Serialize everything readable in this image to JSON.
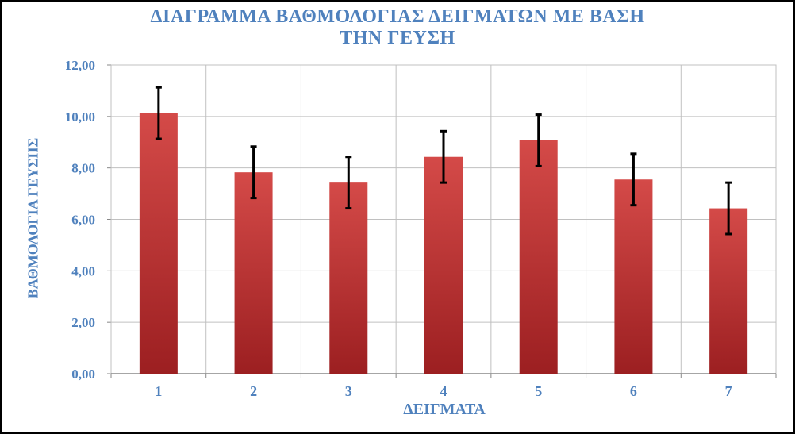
{
  "chart_data": {
    "type": "bar",
    "title_lines": [
      "ΔΙΑΓΡΑΜΜΑ ΒΑΘΜΟΛΟΓΙΑΣ ΔΕΙΓΜΑΤΩΝ ΜΕ ΒΑΣΗ",
      "ΤΗΝ ΓΕΥΣΗ"
    ],
    "xlabel": "ΔΕΙΓΜΑΤΑ",
    "ylabel": "ΒΑΘΜΟΛΟΓΙΑ ΓΕΥΣΗΣ",
    "categories": [
      "1",
      "2",
      "3",
      "4",
      "5",
      "6",
      "7"
    ],
    "values": [
      10.13,
      7.83,
      7.43,
      8.43,
      9.07,
      7.55,
      6.43
    ],
    "error": [
      1.0,
      1.0,
      1.0,
      1.0,
      1.0,
      1.0,
      1.0
    ],
    "ylim": [
      0,
      12
    ],
    "yticks": [
      "0,00",
      "2,00",
      "4,00",
      "6,00",
      "8,00",
      "10,00",
      "12,00"
    ],
    "grid": true,
    "legend": "none",
    "colors": {
      "bar_top": "#d44a48",
      "bar_bottom": "#9c1f21",
      "error_bar": "#000000",
      "grid": "#c0c0c0",
      "text": "#4f81bd"
    }
  }
}
